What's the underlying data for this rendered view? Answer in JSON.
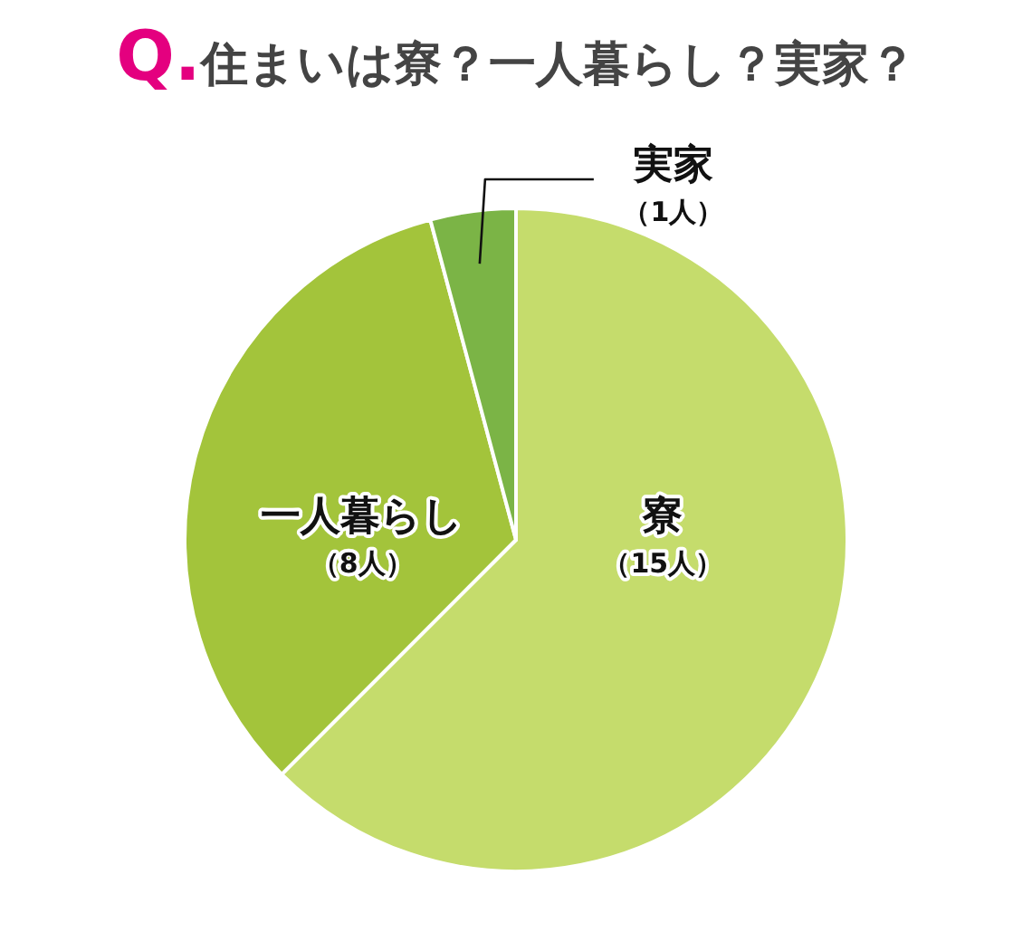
{
  "chart_data": {
    "type": "pie",
    "title": "Q.住まいは寮？一人暮らし？実家？",
    "categories": [
      "寮",
      "一人暮らし",
      "実家"
    ],
    "values": [
      15,
      8,
      1
    ],
    "colors": [
      "#c5dc6c",
      "#a3c43b",
      "#7bb446"
    ],
    "value_labels": [
      "（15人）",
      "（8人）",
      "（1人）"
    ]
  }
}
